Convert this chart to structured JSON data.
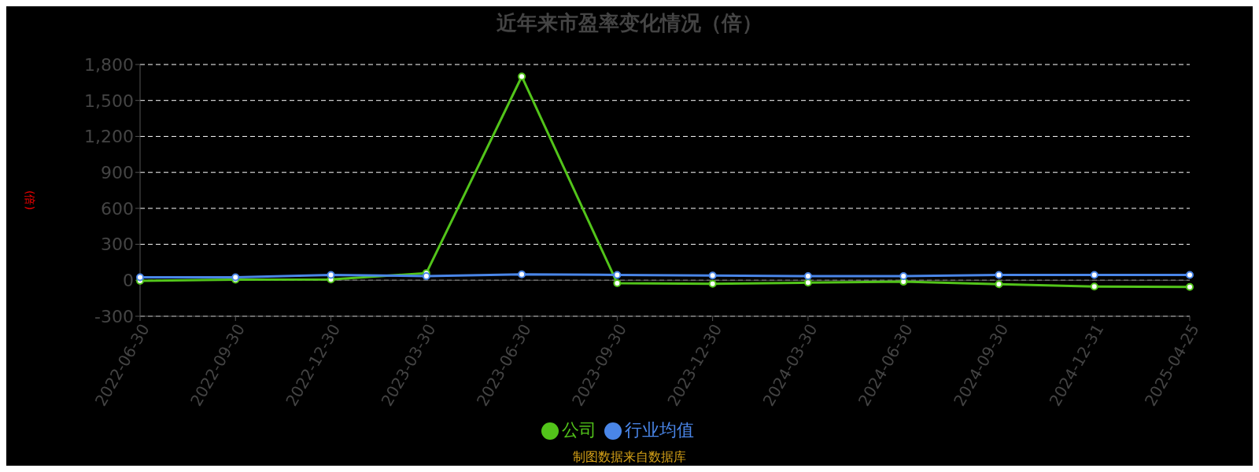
{
  "chart_data": {
    "type": "line",
    "title": "近年来市盈率变化情况（倍）",
    "ylabel": "(倍)",
    "categories": [
      "2022-06-30",
      "2022-09-30",
      "2022-12-30",
      "2023-03-30",
      "2023-06-30",
      "2023-09-30",
      "2023-12-30",
      "2024-03-30",
      "2024-06-30",
      "2024-09-30",
      "2024-12-31",
      "2025-04-25"
    ],
    "series": [
      {
        "name": "公司",
        "color": "#52c41a",
        "values": [
          -5,
          5,
          7,
          60,
          1700,
          -24,
          -29,
          -20,
          -12,
          -33,
          -52,
          -55
        ]
      },
      {
        "name": "行业均值",
        "color": "#4a86e8",
        "values": [
          25,
          25,
          45,
          35,
          50,
          45,
          40,
          35,
          35,
          45,
          45,
          45
        ]
      }
    ],
    "ylim": [
      -300,
      1800
    ],
    "yticks": [
      -300,
      0,
      300,
      600,
      900,
      {
        "value": 1200,
        "label": "1,200"
      },
      {
        "value": 1500,
        "label": "1,500"
      },
      {
        "value": 1800,
        "label": "1,800"
      }
    ],
    "grid": "y",
    "legend": "bottom",
    "marker": "circle",
    "annotations": [
      "制图数据来自数据库"
    ]
  }
}
